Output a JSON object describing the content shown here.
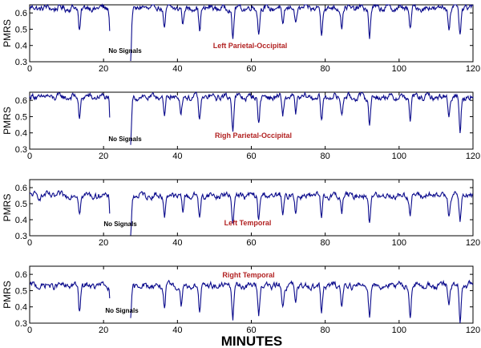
{
  "figure": {
    "xlabel": "MINUTES",
    "line_color": "#0b0b8c",
    "title_color": "#b22222"
  },
  "chart_data": [
    {
      "type": "line",
      "title": "Left Parietal-Occipital",
      "ylabel": "PMRS",
      "xlim": [
        0,
        120
      ],
      "ylim": [
        0.3,
        0.65
      ],
      "x_ticks": [
        0,
        20,
        40,
        60,
        80,
        100,
        120
      ],
      "y_ticks": [
        0.3,
        0.4,
        0.5,
        0.6
      ],
      "annotation": "No Signals",
      "gap": [
        21.5,
        27.5
      ],
      "baseline": 0.63,
      "dips": [
        [
          13.5,
          0.49
        ],
        [
          22.0,
          0.3
        ],
        [
          27.3,
          0.3
        ],
        [
          36.5,
          0.5
        ],
        [
          41.5,
          0.52
        ],
        [
          46.0,
          0.49
        ],
        [
          55.0,
          0.44
        ],
        [
          62.0,
          0.48
        ],
        [
          68.5,
          0.51
        ],
        [
          72.0,
          0.53
        ],
        [
          79.0,
          0.47
        ],
        [
          84.5,
          0.52
        ],
        [
          92.0,
          0.45
        ],
        [
          103.0,
          0.5
        ],
        [
          113.5,
          0.52
        ],
        [
          116.5,
          0.45
        ]
      ]
    },
    {
      "type": "line",
      "title": "Righ Parietal-Occipital",
      "ylabel": "PMRS",
      "xlim": [
        0,
        120
      ],
      "ylim": [
        0.3,
        0.65
      ],
      "x_ticks": [
        0,
        20,
        40,
        60,
        80,
        100,
        120
      ],
      "y_ticks": [
        0.3,
        0.4,
        0.5,
        0.6
      ],
      "annotation": "No Signals",
      "gap": [
        21.5,
        27.5
      ],
      "baseline": 0.62,
      "dips": [
        [
          13.5,
          0.49
        ],
        [
          22.0,
          0.3
        ],
        [
          27.3,
          0.3
        ],
        [
          36.5,
          0.5
        ],
        [
          41.0,
          0.52
        ],
        [
          46.0,
          0.47
        ],
        [
          55.0,
          0.43
        ],
        [
          62.0,
          0.47
        ],
        [
          68.5,
          0.5
        ],
        [
          72.0,
          0.52
        ],
        [
          79.0,
          0.46
        ],
        [
          84.5,
          0.51
        ],
        [
          92.0,
          0.45
        ],
        [
          103.0,
          0.48
        ],
        [
          113.5,
          0.52
        ],
        [
          116.5,
          0.41
        ]
      ]
    },
    {
      "type": "line",
      "title": "Left Temporal",
      "ylabel": "PMRS",
      "xlim": [
        0,
        120
      ],
      "ylim": [
        0.3,
        0.65
      ],
      "x_ticks": [
        0,
        20,
        40,
        60,
        80,
        100,
        120
      ],
      "y_ticks": [
        0.3,
        0.4,
        0.5,
        0.6
      ],
      "annotation": "No Signals",
      "gap": [
        21.5,
        27.5
      ],
      "baseline": 0.55,
      "dips": [
        [
          13.5,
          0.46
        ],
        [
          22.0,
          0.3
        ],
        [
          27.3,
          0.3
        ],
        [
          36.5,
          0.42
        ],
        [
          41.5,
          0.45
        ],
        [
          46.0,
          0.4
        ],
        [
          55.0,
          0.38
        ],
        [
          62.0,
          0.4
        ],
        [
          68.5,
          0.42
        ],
        [
          72.0,
          0.45
        ],
        [
          79.0,
          0.39
        ],
        [
          84.5,
          0.45
        ],
        [
          92.0,
          0.38
        ],
        [
          103.0,
          0.43
        ],
        [
          113.5,
          0.44
        ],
        [
          116.5,
          0.39
        ]
      ]
    },
    {
      "type": "line",
      "title": "Right Temporal",
      "ylabel": "PMRS",
      "xlim": [
        0,
        120
      ],
      "ylim": [
        0.3,
        0.65
      ],
      "x_ticks": [
        0,
        20,
        40,
        60,
        80,
        100,
        120
      ],
      "y_ticks": [
        0.3,
        0.4,
        0.5,
        0.6
      ],
      "annotation": "No Signals",
      "gap": [
        21.5,
        27.5
      ],
      "baseline": 0.53,
      "dips": [
        [
          13.5,
          0.37
        ],
        [
          22.0,
          0.3
        ],
        [
          27.3,
          0.3
        ],
        [
          36.5,
          0.38
        ],
        [
          41.0,
          0.41
        ],
        [
          46.0,
          0.36
        ],
        [
          55.0,
          0.33
        ],
        [
          62.0,
          0.36
        ],
        [
          68.5,
          0.39
        ],
        [
          72.0,
          0.42
        ],
        [
          79.0,
          0.35
        ],
        [
          84.5,
          0.41
        ],
        [
          92.0,
          0.35
        ],
        [
          103.0,
          0.33
        ],
        [
          113.5,
          0.41
        ],
        [
          116.5,
          0.3
        ]
      ]
    }
  ]
}
